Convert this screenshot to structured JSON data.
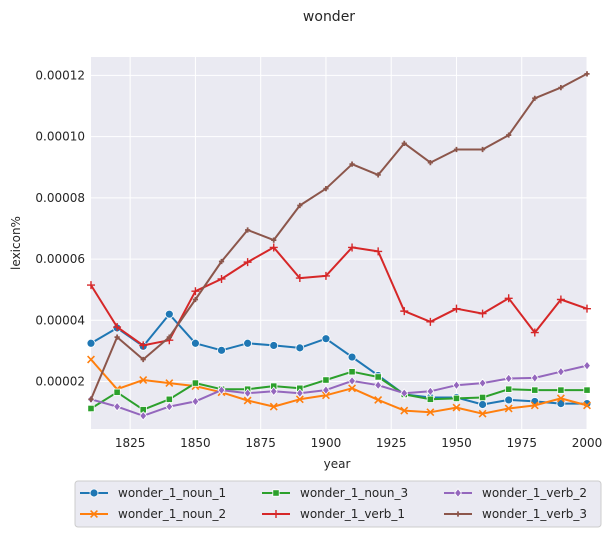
{
  "chart_data": {
    "type": "line",
    "title": "wonder",
    "xlabel": "year",
    "ylabel": "lexicon%",
    "xlim": [
      1810,
      2000
    ],
    "ylim": [
      4.5e-06,
      0.000126
    ],
    "x_ticks": [
      1825,
      1850,
      1875,
      1900,
      1925,
      1950,
      1975,
      2000
    ],
    "y_ticks": [
      2e-05,
      4e-05,
      6e-05,
      8e-05,
      0.0001,
      0.00012
    ],
    "y_tick_labels": [
      "0.00002",
      "0.00004",
      "0.00006",
      "0.00008",
      "0.00010",
      "0.00012"
    ],
    "grid": true,
    "legend_position": "bottom",
    "x": [
      1810,
      1820,
      1830,
      1840,
      1850,
      1860,
      1870,
      1880,
      1890,
      1900,
      1910,
      1920,
      1930,
      1940,
      1950,
      1960,
      1970,
      1980,
      1990,
      2000
    ],
    "series": [
      {
        "name": "wonder_1_noun_1",
        "color": "#1f77b4",
        "marker": "circle",
        "values": [
          3.25e-05,
          3.75e-05,
          3.15e-05,
          4.2e-05,
          3.25e-05,
          3.02e-05,
          3.25e-05,
          3.18e-05,
          3.1e-05,
          3.4e-05,
          2.8e-05,
          2.2e-05,
          1.58e-05,
          1.48e-05,
          1.48e-05,
          1.25e-05,
          1.4e-05,
          1.35e-05,
          1.28e-05,
          1.28e-05
        ]
      },
      {
        "name": "wonder_1_noun_2",
        "color": "#ff7f0e",
        "marker": "x",
        "values": [
          2.72e-05,
          1.75e-05,
          2.05e-05,
          1.95e-05,
          1.85e-05,
          1.65e-05,
          1.38e-05,
          1.18e-05,
          1.42e-05,
          1.55e-05,
          1.78e-05,
          1.4e-05,
          1.05e-05,
          1e-05,
          1.15e-05,
          9.5e-06,
          1.12e-05,
          1.22e-05,
          1.45e-05,
          1.22e-05
        ]
      },
      {
        "name": "wonder_1_noun_3",
        "color": "#2ca02c",
        "marker": "square",
        "values": [
          1.12e-05,
          1.65e-05,
          1.08e-05,
          1.42e-05,
          1.95e-05,
          1.75e-05,
          1.75e-05,
          1.85e-05,
          1.78e-05,
          2.05e-05,
          2.32e-05,
          2.15e-05,
          1.58e-05,
          1.42e-05,
          1.45e-05,
          1.48e-05,
          1.75e-05,
          1.72e-05,
          1.72e-05,
          1.72e-05
        ]
      },
      {
        "name": "wonder_1_verb_1",
        "color": "#d62728",
        "marker": "plus",
        "values": [
          5.15e-05,
          3.78e-05,
          3.18e-05,
          3.35e-05,
          4.95e-05,
          5.35e-05,
          5.9e-05,
          6.38e-05,
          5.38e-05,
          5.45e-05,
          6.38e-05,
          6.25e-05,
          4.3e-05,
          3.95e-05,
          4.38e-05,
          4.22e-05,
          4.72e-05,
          3.6e-05,
          4.68e-05,
          4.38e-05
        ]
      },
      {
        "name": "wonder_1_verb_2",
        "color": "#9467bd",
        "marker": "diamond",
        "values": [
          1.42e-05,
          1.18e-05,
          8.8e-06,
          1.18e-05,
          1.35e-05,
          1.72e-05,
          1.62e-05,
          1.68e-05,
          1.62e-05,
          1.72e-05,
          2.02e-05,
          1.88e-05,
          1.62e-05,
          1.68e-05,
          1.88e-05,
          1.95e-05,
          2.1e-05,
          2.12e-05,
          2.32e-05,
          2.52e-05
        ]
      },
      {
        "name": "wonder_1_verb_3",
        "color": "#8c564b",
        "marker": "plus-small",
        "values": [
          1.42e-05,
          3.45e-05,
          2.72e-05,
          3.45e-05,
          4.68e-05,
          5.92e-05,
          6.95e-05,
          6.62e-05,
          7.75e-05,
          8.3e-05,
          9.1e-05,
          8.75e-05,
          9.78e-05,
          9.15e-05,
          9.58e-05,
          9.58e-05,
          0.0001005,
          0.0001125,
          0.000116,
          0.0001205
        ]
      }
    ]
  }
}
